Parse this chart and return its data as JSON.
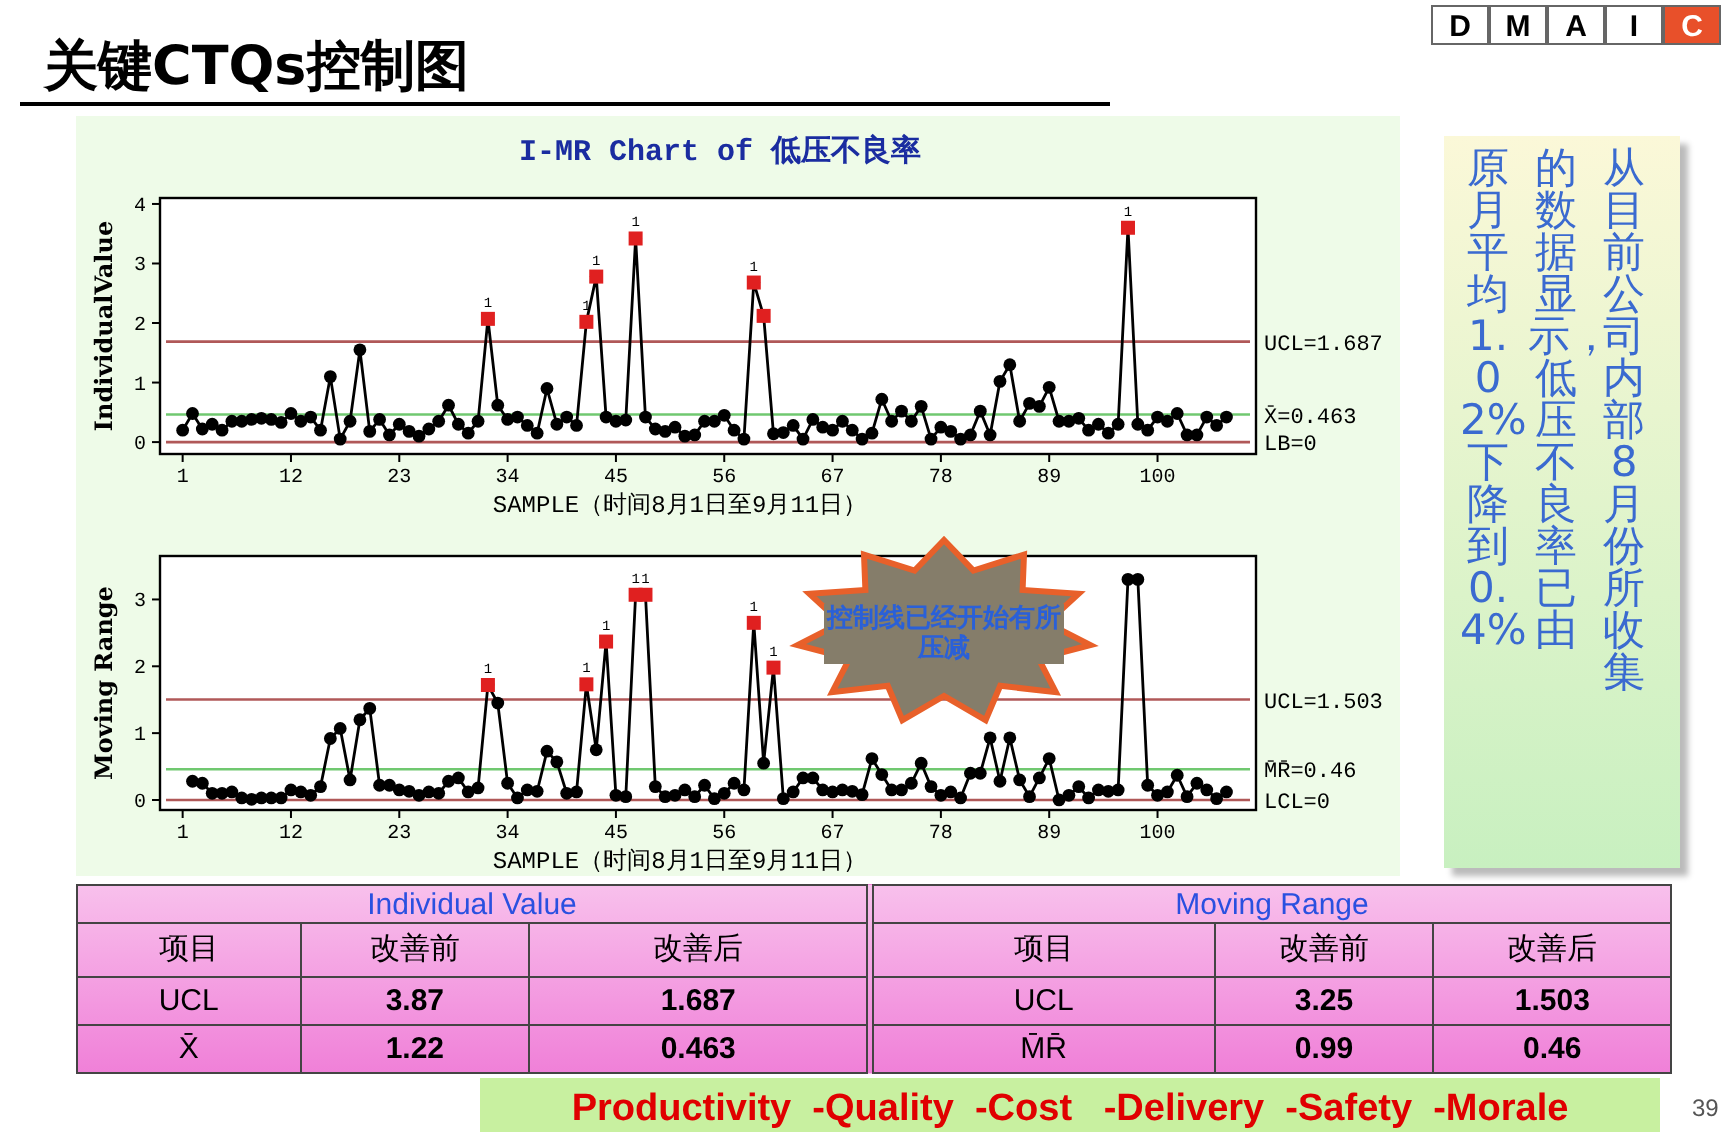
{
  "chart_data": [
    {
      "type": "other",
      "title": "关键CTQs控制图",
      "annotations": [
        "D",
        "M",
        "A",
        "I",
        "C",
        "Productivity  -Quality  -Cost   -Delivery  -Safety  -Morale",
        "39"
      ],
      "colors": [
        "#ffffff",
        "#ffffff",
        "#ffffff",
        "#ffffff",
        "#e8502a"
      ]
    },
    {
      "type": "line",
      "title": "I-MR Chart of 低压不良率",
      "xlabel": "SAMPLE（时间8月1日至9月11日）",
      "ylabel": "IndividualValue",
      "x": [
        1,
        2,
        3,
        4,
        5,
        6,
        7,
        8,
        9,
        10,
        11,
        12,
        13,
        14,
        15,
        16,
        17,
        18,
        19,
        20,
        21,
        22,
        23,
        24,
        25,
        26,
        27,
        28,
        29,
        30,
        31,
        32,
        33,
        34,
        35,
        36,
        37,
        38,
        39,
        40,
        41,
        42,
        43,
        44,
        45,
        46,
        47,
        48,
        49,
        50,
        51,
        52,
        53,
        54,
        55,
        56,
        57,
        58,
        59,
        60,
        61,
        62,
        63,
        64,
        65,
        66,
        67,
        68,
        69,
        70,
        71,
        72,
        73,
        74,
        75,
        76,
        77,
        78,
        79,
        80,
        81,
        82,
        83,
        84,
        85,
        86,
        87,
        88,
        89,
        90,
        91,
        92,
        93,
        94,
        95,
        96,
        97,
        98,
        99,
        100,
        101,
        102,
        103,
        104,
        105,
        106,
        107
      ],
      "series": [
        {
          "type": "line",
          "color": "#000000",
          "marker": "circle",
          "values": [
            0.2,
            0.48,
            0.22,
            0.3,
            0.2,
            0.35,
            0.35,
            0.38,
            0.4,
            0.38,
            0.33,
            0.48,
            0.35,
            0.42,
            0.2,
            1.1,
            0.05,
            0.35,
            1.55,
            0.18,
            0.38,
            0.12,
            0.3,
            0.18,
            0.1,
            0.22,
            0.35,
            0.62,
            0.3,
            0.15,
            0.35,
            2.07,
            0.62,
            0.38,
            0.42,
            0.28,
            0.15,
            0.9,
            0.3,
            0.42,
            0.28,
            2.02,
            2.78,
            0.42,
            0.35,
            0.37,
            3.42,
            0.42,
            0.22,
            0.18,
            0.25,
            0.1,
            0.12,
            0.35,
            0.35,
            0.45,
            0.2,
            0.05,
            2.68,
            2.12,
            0.14,
            0.16,
            0.28,
            0.05,
            0.38,
            0.25,
            0.2,
            0.35,
            0.2,
            0.05,
            0.15,
            0.72,
            0.35,
            0.52,
            0.35,
            0.6,
            0.05,
            0.25,
            0.18,
            0.05,
            0.12,
            0.52,
            0.12,
            1.02,
            1.3,
            0.35,
            0.65,
            0.6,
            0.92,
            0.35,
            0.35,
            0.4,
            0.2,
            0.3,
            0.15,
            0.3,
            3.6,
            0.3,
            0.2,
            0.42,
            0.35,
            0.48,
            0.12,
            0.12,
            0.42,
            0.28,
            0.42
          ]
        },
        {
          "type": "scatter",
          "color": "#e02020",
          "marker": "square",
          "x": [
            32,
            42,
            43,
            47,
            59,
            60,
            97
          ],
          "values": [
            2.07,
            2.02,
            2.78,
            3.42,
            2.68,
            2.12,
            3.6
          ]
        }
      ],
      "xlim": [
        -1.3,
        110
      ],
      "xticks": [
        1,
        12,
        23,
        34,
        45,
        56,
        67,
        78,
        89,
        100
      ],
      "ylim": [
        -0.2,
        4.1
      ],
      "yticks": [
        0,
        1,
        2,
        3,
        4
      ],
      "ref_lines": [
        {
          "axis": "y",
          "value": 1.687,
          "label": "UCL=1.687",
          "color": "#b05858"
        },
        {
          "axis": "y",
          "value": 0.463,
          "label": "X̄=0.463",
          "color": "#70c870"
        },
        {
          "axis": "y",
          "value": 0,
          "label": "LB=0",
          "color": "#b05858"
        }
      ],
      "annotations": [
        "控制线已经开始有所压减",
        {
          "text": "1",
          "x": 32,
          "y": 2.07
        },
        {
          "text": "1",
          "x": 42,
          "y": 2.02
        },
        {
          "text": "1",
          "x": 43,
          "y": 2.78
        },
        {
          "text": "1",
          "x": 47,
          "y": 3.42
        },
        {
          "text": "1",
          "x": 59,
          "y": 2.68
        },
        {
          "text": "1",
          "x": 97,
          "y": 3.6
        }
      ]
    },
    {
      "type": "line",
      "xlabel": "SAMPLE（时间8月1日至9月11日）",
      "ylabel": "Moving Range",
      "x": [
        2,
        3,
        4,
        5,
        6,
        7,
        8,
        9,
        10,
        11,
        12,
        13,
        14,
        15,
        16,
        17,
        18,
        19,
        20,
        21,
        22,
        23,
        24,
        25,
        26,
        27,
        28,
        29,
        30,
        31,
        32,
        33,
        34,
        35,
        36,
        37,
        38,
        39,
        40,
        41,
        42,
        43,
        44,
        45,
        46,
        47,
        48,
        49,
        50,
        51,
        52,
        53,
        54,
        55,
        56,
        57,
        58,
        59,
        60,
        61,
        62,
        63,
        64,
        65,
        66,
        67,
        68,
        69,
        70,
        71,
        72,
        73,
        74,
        75,
        76,
        77,
        78,
        79,
        80,
        81,
        82,
        83,
        84,
        85,
        86,
        87,
        88,
        89,
        90,
        91,
        92,
        93,
        94,
        95,
        96,
        97,
        98,
        99,
        100,
        101,
        102,
        103,
        104,
        105,
        106,
        107
      ],
      "series": [
        {
          "type": "line",
          "color": "#000000",
          "marker": "circle",
          "values": [
            0.28,
            0.25,
            0.1,
            0.1,
            0.12,
            0.03,
            0.01,
            0.03,
            0.03,
            0.03,
            0.15,
            0.12,
            0.07,
            0.2,
            0.92,
            1.07,
            0.3,
            1.2,
            1.37,
            0.22,
            0.22,
            0.15,
            0.13,
            0.07,
            0.12,
            0.1,
            0.28,
            0.33,
            0.12,
            0.18,
            1.72,
            1.45,
            0.25,
            0.03,
            0.15,
            0.13,
            0.73,
            0.57,
            0.1,
            0.12,
            1.73,
            0.75,
            2.37,
            0.07,
            0.05,
            3.07,
            3.07,
            0.2,
            0.05,
            0.07,
            0.15,
            0.05,
            0.22,
            0.02,
            0.1,
            0.25,
            0.15,
            2.65,
            0.55,
            1.98,
            0.02,
            0.12,
            0.33,
            0.33,
            0.15,
            0.12,
            0.15,
            0.13,
            0.08,
            0.62,
            0.38,
            0.15,
            0.15,
            0.25,
            0.55,
            0.2,
            0.07,
            0.12,
            0.03,
            0.4,
            0.4,
            0.93,
            0.28,
            0.93,
            0.3,
            0.05,
            0.33,
            0.62,
            0.0,
            0.07,
            0.2,
            0.03,
            0.15,
            0.13,
            0.15,
            3.3,
            3.3,
            0.22,
            0.07,
            0.12,
            0.37,
            0.05,
            0.25,
            0.15,
            0.02,
            0.12
          ]
        },
        {
          "type": "scatter",
          "color": "#e02020",
          "marker": "square",
          "x": [
            32,
            42,
            44,
            47,
            48,
            59,
            61
          ],
          "values": [
            1.72,
            1.73,
            2.37,
            3.07,
            3.07,
            2.65,
            1.98
          ]
        }
      ],
      "xlim": [
        -1.3,
        110
      ],
      "xticks": [
        1,
        12,
        23,
        34,
        45,
        56,
        67,
        78,
        89,
        100
      ],
      "ylim": [
        -0.15,
        3.65
      ],
      "yticks": [
        0,
        1,
        2,
        3
      ],
      "ref_lines": [
        {
          "axis": "y",
          "value": 1.503,
          "label": "UCL=1.503",
          "color": "#b05858"
        },
        {
          "axis": "y",
          "value": 0.46,
          "label": "M̄R̄=0.46",
          "color": "#70c870"
        },
        {
          "axis": "y",
          "value": 0,
          "label": "LCL=0",
          "color": "#b05858"
        }
      ],
      "annotations": [
        {
          "text": "1",
          "x": 32,
          "y": 1.72
        },
        {
          "text": "1",
          "x": 42,
          "y": 1.73
        },
        {
          "text": "1",
          "x": 44,
          "y": 2.37
        },
        {
          "text": "1",
          "x": 47,
          "y": 3.07
        },
        {
          "text": "1",
          "x": 48,
          "y": 3.07
        },
        {
          "text": "1",
          "x": 59,
          "y": 2.65
        },
        {
          "text": "1",
          "x": 61,
          "y": 1.98
        }
      ]
    },
    {
      "type": "other",
      "annotations": [
        "从目前公司内部8月份所收集",
        "的数据显示，低压不良率已由",
        "原月平均1.02%下降到0.4%"
      ]
    },
    {
      "type": "other",
      "annotations": [
        "Individual Value",
        "Moving Range",
        "项目",
        "改善前",
        "改善后",
        "项目",
        "改善前",
        "改善后",
        "UCL",
        "3.87",
        "1.687",
        "UCL",
        "3.25",
        "1.503",
        "X̄",
        "1.22",
        "0.463",
        "M̄R̄",
        "0.99",
        "0.46"
      ]
    }
  ]
}
